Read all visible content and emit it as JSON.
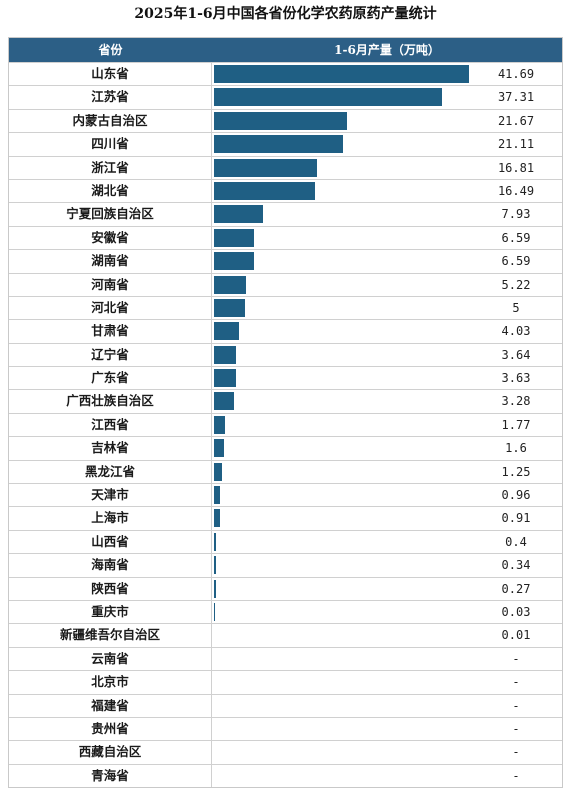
{
  "title": "2025年1-6月中国各省份化学农药原药产量统计",
  "header": {
    "province": "省份",
    "value": "1-6月产量（万吨）"
  },
  "colors": {
    "header_bg": "#2c5f86",
    "bar": "#1f5f84"
  },
  "chart_data": {
    "type": "bar",
    "orientation": "horizontal",
    "categories": [
      "山东省",
      "江苏省",
      "内蒙古自治区",
      "四川省",
      "浙江省",
      "湖北省",
      "宁夏回族自治区",
      "安徽省",
      "湖南省",
      "河南省",
      "河北省",
      "甘肃省",
      "辽宁省",
      "广东省",
      "广西壮族自治区",
      "江西省",
      "吉林省",
      "黑龙江省",
      "天津市",
      "上海市",
      "山西省",
      "海南省",
      "陕西省",
      "重庆市",
      "新疆维吾尔自治区",
      "云南省",
      "北京市",
      "福建省",
      "贵州省",
      "西藏自治区",
      "青海省"
    ],
    "values": [
      41.69,
      37.31,
      21.67,
      21.11,
      16.81,
      16.49,
      7.93,
      6.59,
      6.59,
      5.22,
      5,
      4.03,
      3.64,
      3.63,
      3.28,
      1.77,
      1.6,
      1.25,
      0.96,
      0.91,
      0.4,
      0.34,
      0.27,
      0.03,
      0.01,
      null,
      null,
      null,
      null,
      null,
      null
    ],
    "labels": [
      "41.69",
      "37.31",
      "21.67",
      "21.11",
      "16.81",
      "16.49",
      "7.93",
      "6.59",
      "6.59",
      "5.22",
      "5",
      "4.03",
      "3.64",
      "3.63",
      "3.28",
      "1.77",
      "1.6",
      "1.25",
      "0.96",
      "0.91",
      "0.4",
      "0.34",
      "0.27",
      "0.03",
      "0.01",
      "-",
      "-",
      "-",
      "-",
      "-",
      "-"
    ]
  }
}
